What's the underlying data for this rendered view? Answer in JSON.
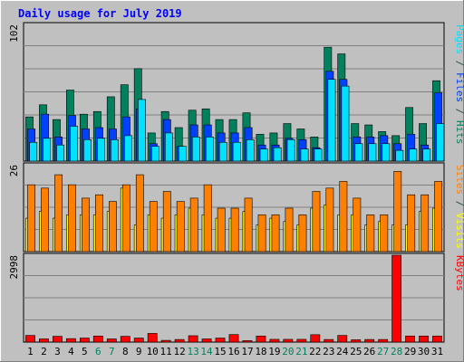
{
  "chart_data": {
    "type": "bar",
    "title": "Daily usage for July 2019",
    "categories": [
      "1",
      "2",
      "3",
      "4",
      "5",
      "6",
      "7",
      "8",
      "9",
      "10",
      "11",
      "12",
      "13",
      "14",
      "15",
      "16",
      "17",
      "18",
      "19",
      "20",
      "21",
      "22",
      "23",
      "24",
      "25",
      "26",
      "27",
      "28",
      "29",
      "30",
      "31"
    ],
    "weekend_days": [
      "6",
      "7",
      "13",
      "14",
      "20",
      "21",
      "27",
      "28"
    ],
    "panels": [
      {
        "id": "hits",
        "ymax_label": "102",
        "ylim": [
          0,
          102
        ],
        "series": [
          {
            "name": "Hits",
            "color": "#00805C",
            "values": [
              33,
              42,
              31,
              53,
              35,
              37,
              48,
              57,
              69,
              21,
              37,
              25,
              38,
              39,
              31,
              31,
              36,
              20,
              21,
              28,
              24,
              18,
              85,
              80,
              28,
              27,
              22,
              19,
              40,
              28,
              60
            ]
          },
          {
            "name": "Files",
            "color": "#0040FF",
            "values": [
              24,
              35,
              18,
              34,
              24,
              25,
              24,
              33,
              39,
              13,
              31,
              11,
              27,
              27,
              21,
              21,
              25,
              12,
              12,
              17,
              16,
              10,
              67,
              61,
              18,
              18,
              19,
              13,
              20,
              12,
              51
            ]
          },
          {
            "name": "Pages",
            "color": "#00E0FF",
            "values": [
              14,
              17,
              12,
              26,
              16,
              17,
              16,
              19,
              46,
              11,
              21,
              11,
              18,
              18,
              14,
              14,
              16,
              9,
              10,
              16,
              9,
              9,
              61,
              56,
              13,
              13,
              13,
              8,
              9,
              9,
              28
            ]
          }
        ]
      },
      {
        "id": "visits",
        "ymax_label": "26",
        "ylim": [
          0,
          26
        ],
        "series": [
          {
            "name": "Visits",
            "color": "#FFFF00",
            "values": [
              10,
              12,
              10,
              11,
              11,
              11,
              12,
              19,
              8,
              11,
              10,
              11,
              13,
              11,
              10,
              10,
              12,
              8,
              10,
              9,
              8,
              13,
              14,
              11,
              11,
              8,
              9,
              8,
              8,
              12,
              13
            ]
          },
          {
            "name": "Sites",
            "color": "#FF8000",
            "values": [
              20,
              19,
              23,
              20,
              16,
              17,
              15,
              20,
              23,
              15,
              18,
              15,
              16,
              20,
              13,
              13,
              16,
              11,
              11,
              13,
              11,
              18,
              19,
              21,
              16,
              11,
              11,
              24,
              17,
              17,
              21
            ]
          }
        ]
      },
      {
        "id": "kbytes",
        "ymax_label": "2998",
        "ylim": [
          0,
          2998
        ],
        "series": [
          {
            "name": "KBytes",
            "color": "#FF0000",
            "values": [
              230,
              110,
              200,
              120,
              140,
              210,
              110,
              200,
              140,
              300,
              60,
              90,
              220,
              110,
              140,
              260,
              50,
              210,
              95,
              95,
              95,
              255,
              90,
              230,
              80,
              90,
              90,
              2998,
              210,
              210,
              210
            ]
          }
        ]
      }
    ],
    "right_labels": [
      [
        {
          "text": "Pages",
          "color": "#00E0FF"
        },
        {
          "text": " / ",
          "color": "#2F4F4F"
        },
        {
          "text": "Files",
          "color": "#0040FF"
        },
        {
          "text": " / ",
          "color": "#2F4F4F"
        },
        {
          "text": "Hits",
          "color": "#00805C"
        }
      ],
      [
        {
          "text": "Sites",
          "color": "#FF8000"
        },
        {
          "text": " / ",
          "color": "#2F4F4F"
        },
        {
          "text": "Visits",
          "color": "#FFFF00"
        }
      ],
      [
        {
          "text": "KBytes",
          "color": "#FF0000"
        }
      ]
    ]
  }
}
